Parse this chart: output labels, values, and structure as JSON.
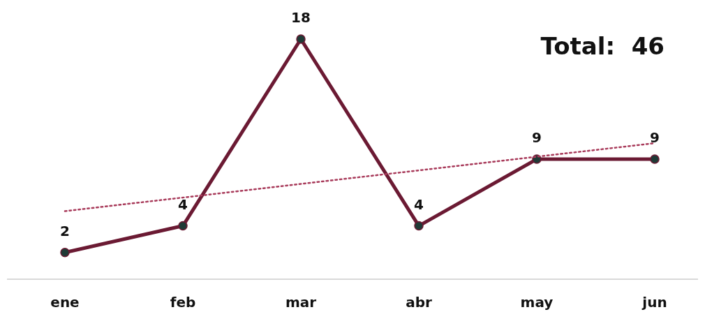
{
  "chart_data": {
    "type": "line",
    "categories": [
      "ene",
      "feb",
      "mar",
      "abr",
      "may",
      "jun"
    ],
    "annotations": [
      "Total:  46"
    ],
    "series": [
      {
        "color": "#6b1a33",
        "values": [
          2,
          4,
          18,
          4,
          9,
          9
        ],
        "value_labels": [
          "2",
          "4",
          "18",
          "4",
          "9",
          "9"
        ],
        "marker": "circle",
        "line_style": "solid"
      },
      {
        "color": "#a83a5a",
        "x": [
          "ene",
          "jun"
        ],
        "values": [
          5.1,
          10.2
        ],
        "marker": "none",
        "line_style": "dotted"
      }
    ]
  }
}
